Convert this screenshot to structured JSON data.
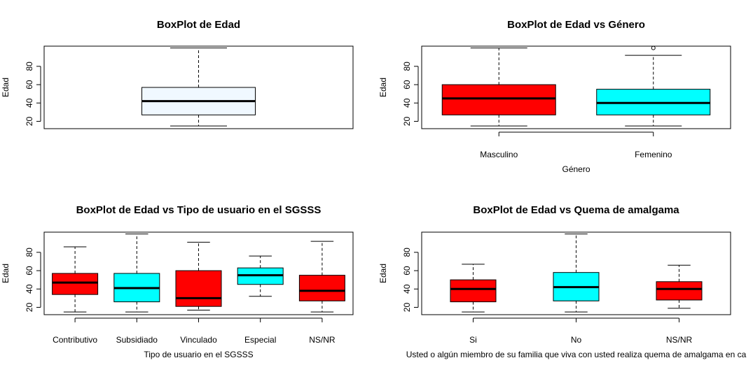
{
  "chart_data": [
    {
      "type": "boxplot",
      "title": "BoxPlot de Edad",
      "xlabel": "",
      "ylabel": "Edad",
      "yticks": [
        20,
        40,
        60,
        80
      ],
      "ylim": [
        12,
        102
      ],
      "boxes": [
        {
          "category": "",
          "color": "#F0F8FF",
          "min": 15,
          "q1": 27,
          "median": 42,
          "q3": 57,
          "max": 100,
          "outliers": []
        }
      ]
    },
    {
      "type": "boxplot",
      "title": "BoxPlot de Edad vs Género",
      "xlabel": "Género",
      "ylabel": "Edad",
      "yticks": [
        20,
        40,
        60,
        80
      ],
      "ylim": [
        12,
        102
      ],
      "boxes": [
        {
          "category": "Masculino",
          "color": "#FF0000",
          "min": 15,
          "q1": 27,
          "median": 45,
          "q3": 60,
          "max": 100,
          "outliers": []
        },
        {
          "category": "Femenino",
          "color": "#00FFFF",
          "min": 15,
          "q1": 27,
          "median": 40,
          "q3": 55,
          "max": 92,
          "outliers": [
            100
          ]
        }
      ]
    },
    {
      "type": "boxplot",
      "title": "BoxPlot de Edad vs Tipo de usuario en el SGSSS",
      "xlabel": "Tipo de usuario en el SGSSS",
      "ylabel": "Edad",
      "yticks": [
        20,
        40,
        60,
        80
      ],
      "ylim": [
        12,
        102
      ],
      "boxes": [
        {
          "category": "Contributivo",
          "color": "#FF0000",
          "min": 15,
          "q1": 34,
          "median": 47,
          "q3": 57,
          "max": 86,
          "outliers": []
        },
        {
          "category": "Subsidiado",
          "color": "#00FFFF",
          "min": 15,
          "q1": 26,
          "median": 41,
          "q3": 57,
          "max": 100,
          "outliers": []
        },
        {
          "category": "Vinculado",
          "color": "#FF0000",
          "min": 17,
          "q1": 21,
          "median": 30,
          "q3": 60,
          "max": 91,
          "outliers": []
        },
        {
          "category": "Especial",
          "color": "#00FFFF",
          "min": 32,
          "q1": 45,
          "median": 55,
          "q3": 63,
          "max": 76,
          "outliers": []
        },
        {
          "category": "NS/NR",
          "color": "#FF0000",
          "min": 15,
          "q1": 27,
          "median": 38,
          "q3": 55,
          "max": 92,
          "outliers": []
        }
      ]
    },
    {
      "type": "boxplot",
      "title": "BoxPlot de Edad vs Quema de amalgama",
      "xlabel": "Usted o algún miembro de su familia que viva con usted realiza quema de amalgama en ca",
      "ylabel": "Edad",
      "yticks": [
        20,
        40,
        60,
        80
      ],
      "ylim": [
        12,
        102
      ],
      "boxes": [
        {
          "category": "Si",
          "color": "#FF0000",
          "min": 15,
          "q1": 26,
          "median": 40,
          "q3": 50,
          "max": 67,
          "outliers": []
        },
        {
          "category": "No",
          "color": "#00FFFF",
          "min": 15,
          "q1": 27,
          "median": 42,
          "q3": 58,
          "max": 100,
          "outliers": []
        },
        {
          "category": "NS/NR",
          "color": "#FF0000",
          "min": 19,
          "q1": 28,
          "median": 40,
          "q3": 48,
          "max": 66,
          "outliers": []
        }
      ]
    }
  ]
}
